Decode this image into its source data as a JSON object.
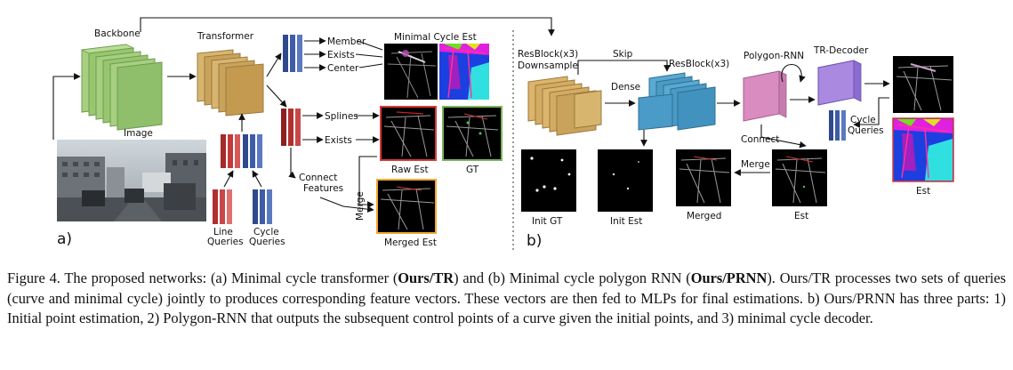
{
  "figure": {
    "labels": {
      "backbone": "Backbone",
      "transformer": "Transformer",
      "image": "Image",
      "member": "Member",
      "exists_top": "Exists",
      "center": "Center",
      "minimal_cycle_est": "Minimal Cycle Est",
      "splines": "Splines",
      "exists_mid": "Exists",
      "raw_est": "Raw Est",
      "gt": "GT",
      "connect_features_1": "Connect",
      "connect_features_2": "Features",
      "merge_a": "Merge",
      "merged_est": "Merged Est",
      "line_queries_1": "Line",
      "line_queries_2": "Queries",
      "cycle_queries_1": "Cycle",
      "cycle_queries_2": "Queries",
      "panel_a": "a)",
      "resblock_down_1": "ResBlock(x3)",
      "resblock_down_2": "Downsample",
      "skip": "Skip",
      "resblock": "ResBlock(x3)",
      "dense": "Dense",
      "polygon_rnn": "Polygon-RNN",
      "tr_decoder": "TR-Decoder",
      "cycle_queries_b_1": "Cycle",
      "cycle_queries_b_2": "Queries",
      "connect": "Connect",
      "merge_b": "Merge",
      "init_gt": "Init GT",
      "init_est": "Init Est",
      "merged": "Merged",
      "est_b": "Est",
      "est_final": "Est",
      "panel_b": "b)"
    },
    "colors": {
      "backbone": "#8fbf6a",
      "transformer": "#c9a35c",
      "resblock_down": "#d3ab62",
      "resblock": "#4a9bc7",
      "polygon_rnn": "#d88cc0",
      "tr_decoder": "#a98ae0",
      "query_red": "#a52a2a",
      "query_blue": "#2e4a8c",
      "frame_red": "#d83a3a",
      "frame_green": "#7ab35a",
      "frame_orange": "#f0a830"
    }
  },
  "caption": {
    "s1_pre": "Figure 4. The proposed networks: (a) Minimal cycle transformer (",
    "s1_b1": "Ours/TR",
    "s1_mid": ") and (b) Minimal cycle polygon RNN (",
    "s1_b2": "Ours/PRNN",
    "s1_post": "). Ours/TR processes two sets of queries (curve and minimal cycle) jointly to produces corresponding feature vectors. These vectors are then fed to MLPs for final estimations. b) Ours/PRNN has three parts: 1) Initial point estimation, 2) Polygon-RNN that outputs the subsequent control points of a curve given the initial points, and 3) minimal cycle decoder."
  }
}
